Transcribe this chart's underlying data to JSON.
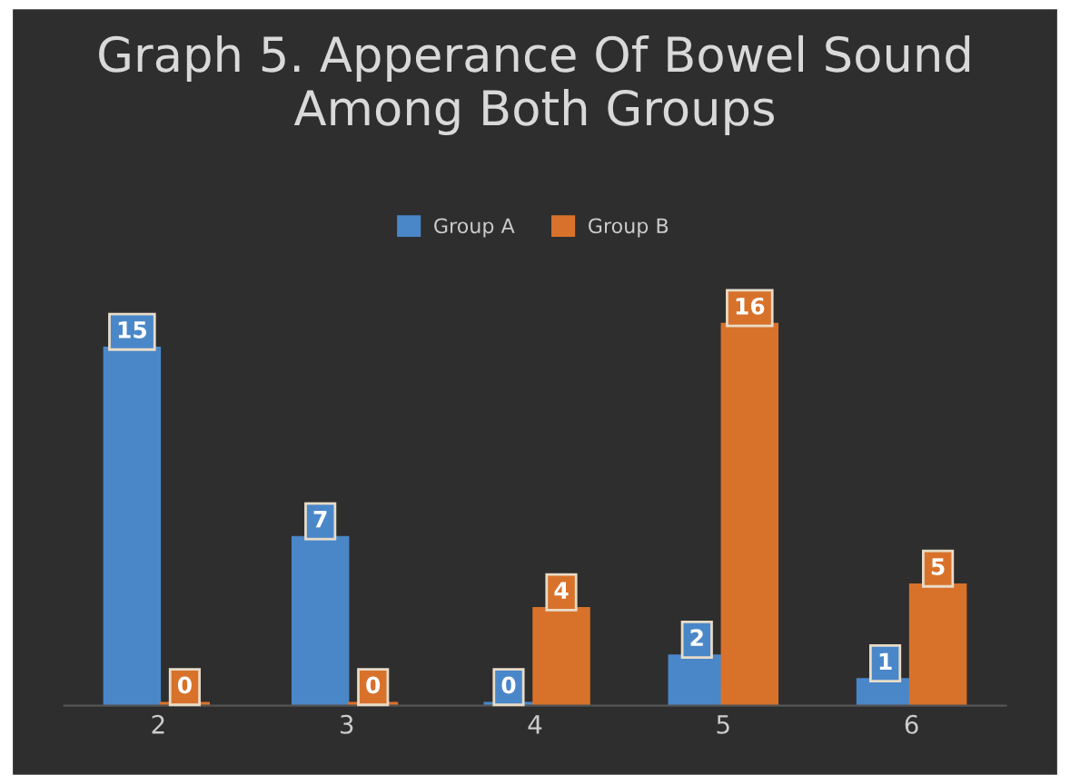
{
  "chart_data": {
    "type": "bar",
    "title": "Graph 5. Apperance Of Bowel Sound\nAmong Both Groups",
    "categories": [
      "2",
      "3",
      "4",
      "5",
      "6"
    ],
    "series": [
      {
        "name": "Group A",
        "color": "#4a87c9",
        "values": [
          15,
          7,
          0,
          2,
          1
        ]
      },
      {
        "name": "Group B",
        "color": "#d8722b",
        "values": [
          0,
          0,
          4,
          16,
          5
        ]
      }
    ],
    "data_labels": true,
    "legend": "top",
    "grid": false
  }
}
